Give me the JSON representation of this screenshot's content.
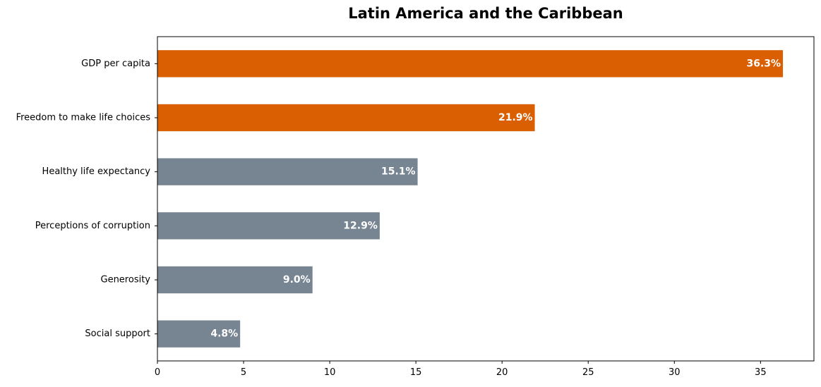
{
  "chart_data": {
    "type": "bar",
    "orientation": "horizontal",
    "title": "Latin America and the Caribbean",
    "xlabel": "",
    "ylabel": "",
    "categories": [
      "GDP per capita",
      "Freedom to make life choices",
      "Healthy life expectancy",
      "Perceptions of corruption",
      "Generosity",
      "Social support"
    ],
    "values": [
      36.3,
      21.9,
      15.1,
      12.9,
      9.0,
      4.8
    ],
    "value_labels": [
      "36.3%",
      "21.9%",
      "15.1%",
      "12.9%",
      "9.0%",
      "4.8%"
    ],
    "bar_colors": [
      "#d95f02",
      "#d95f02",
      "#778491",
      "#778491",
      "#778491",
      "#778491"
    ],
    "xlim": [
      0,
      38.1
    ],
    "xticks": [
      0,
      5,
      10,
      15,
      20,
      25,
      30,
      35
    ],
    "xtick_labels": [
      "0",
      "5",
      "10",
      "15",
      "20",
      "25",
      "30",
      "35"
    ],
    "grid": false,
    "legend": "none"
  }
}
